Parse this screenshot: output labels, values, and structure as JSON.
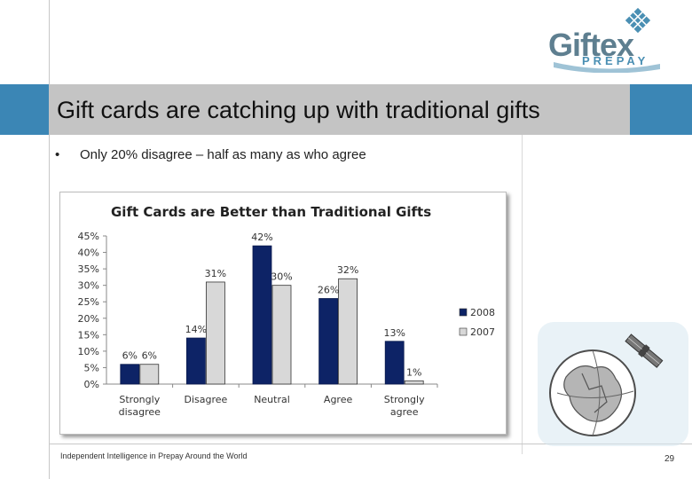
{
  "logo": {
    "brand": "Giftex",
    "sub": "PREPAY"
  },
  "slide": {
    "title": "Gift cards are catching up with traditional gifts",
    "bullet_symbol": "•",
    "bullet": "Only 20% disagree – half as many as who agree"
  },
  "footer": {
    "text": "Independent Intelligence in Prepay Around the World",
    "page": "29"
  },
  "colors": {
    "accent_blue": "#3b86b5",
    "title_gray": "#c4c4c4",
    "series_2008": "#0d2366",
    "series_2007": "#d8d8d8"
  },
  "chart_data": {
    "type": "bar",
    "title": "Gift Cards are Better than Traditional Gifts",
    "categories": [
      [
        "Strongly",
        "disagree"
      ],
      [
        "Disagree"
      ],
      [
        "Neutral"
      ],
      [
        "Agree"
      ],
      [
        "Strongly",
        "agree"
      ]
    ],
    "series": [
      {
        "name": "2008",
        "values": [
          6,
          14,
          42,
          26,
          13
        ]
      },
      {
        "name": "2007",
        "values": [
          6,
          31,
          30,
          32,
          1
        ]
      }
    ],
    "ylim": [
      0,
      45
    ],
    "yticks": [
      0,
      5,
      10,
      15,
      20,
      25,
      30,
      35,
      40,
      45
    ],
    "value_suffix": "%",
    "legend_position": "right",
    "grid": false
  }
}
